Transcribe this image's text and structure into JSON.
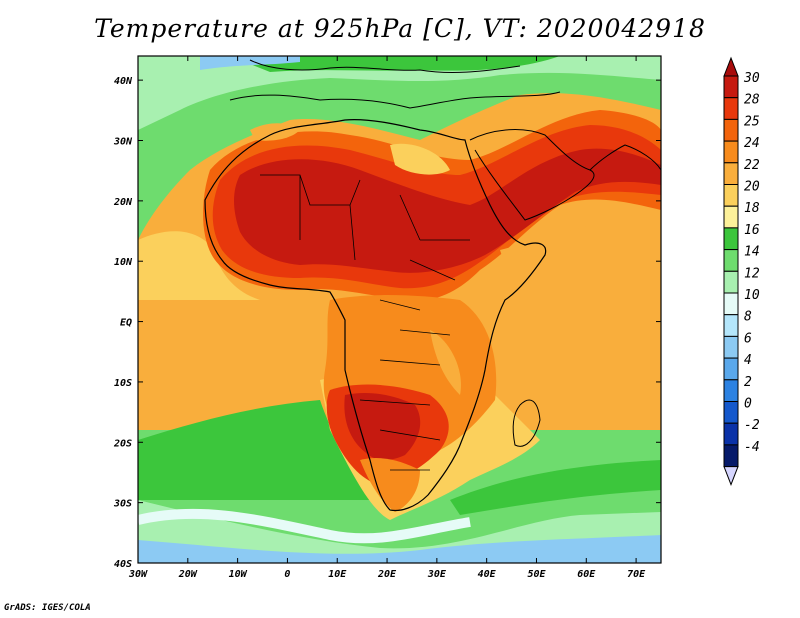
{
  "title": "Temperature at 925hPa [C], VT: 2020042918",
  "credit": "GrADS: IGES/COLA",
  "map": {
    "type": "filled-contour map",
    "variable": "Temperature at 925hPa",
    "units": "C",
    "valid_time": "2020042918",
    "lon_range": [
      -30,
      75
    ],
    "lat_range": [
      -40,
      44
    ],
    "x_ticks": [
      {
        "value": -30,
        "label": "30W"
      },
      {
        "value": -20,
        "label": "20W"
      },
      {
        "value": -10,
        "label": "10W"
      },
      {
        "value": 0,
        "label": "0"
      },
      {
        "value": 10,
        "label": "10E"
      },
      {
        "value": 20,
        "label": "20E"
      },
      {
        "value": 30,
        "label": "30E"
      },
      {
        "value": 40,
        "label": "40E"
      },
      {
        "value": 50,
        "label": "50E"
      },
      {
        "value": 60,
        "label": "60E"
      },
      {
        "value": 70,
        "label": "70E"
      }
    ],
    "y_ticks": [
      {
        "value": 40,
        "label": "40N"
      },
      {
        "value": 30,
        "label": "30N"
      },
      {
        "value": 20,
        "label": "20N"
      },
      {
        "value": 10,
        "label": "10N"
      },
      {
        "value": 0,
        "label": "EQ"
      },
      {
        "value": -10,
        "label": "10S"
      },
      {
        "value": -20,
        "label": "20S"
      },
      {
        "value": -30,
        "label": "30S"
      },
      {
        "value": -40,
        "label": "40S"
      }
    ]
  },
  "colorbar": {
    "levels": [
      {
        "label": "30",
        "color": "#c61a10"
      },
      {
        "label": "28",
        "color": "#e8380c"
      },
      {
        "label": "25",
        "color": "#f3640c"
      },
      {
        "label": "24",
        "color": "#f78b1c"
      },
      {
        "label": "22",
        "color": "#f9ae3c"
      },
      {
        "label": "20",
        "color": "#fbd05c"
      },
      {
        "label": "18",
        "color": "#fdf19a"
      },
      {
        "label": "16",
        "color": "#3cc63c"
      },
      {
        "label": "14",
        "color": "#6edc6e"
      },
      {
        "label": "12",
        "color": "#a8f0b0"
      },
      {
        "label": "10",
        "color": "#e6fbf7"
      },
      {
        "label": "8",
        "color": "#b4e6fb"
      },
      {
        "label": "6",
        "color": "#8ccaf3"
      },
      {
        "label": "4",
        "color": "#5aa8eb"
      },
      {
        "label": "2",
        "color": "#2c82e2"
      },
      {
        "label": "0",
        "color": "#1458cc"
      },
      {
        "label": "-2",
        "color": "#0a32a8"
      },
      {
        "label": "-4",
        "color": "#061a6a"
      }
    ],
    "top_arrow_color": "#a80c0c",
    "bottom_arrow_color": "#d6d6ff"
  }
}
